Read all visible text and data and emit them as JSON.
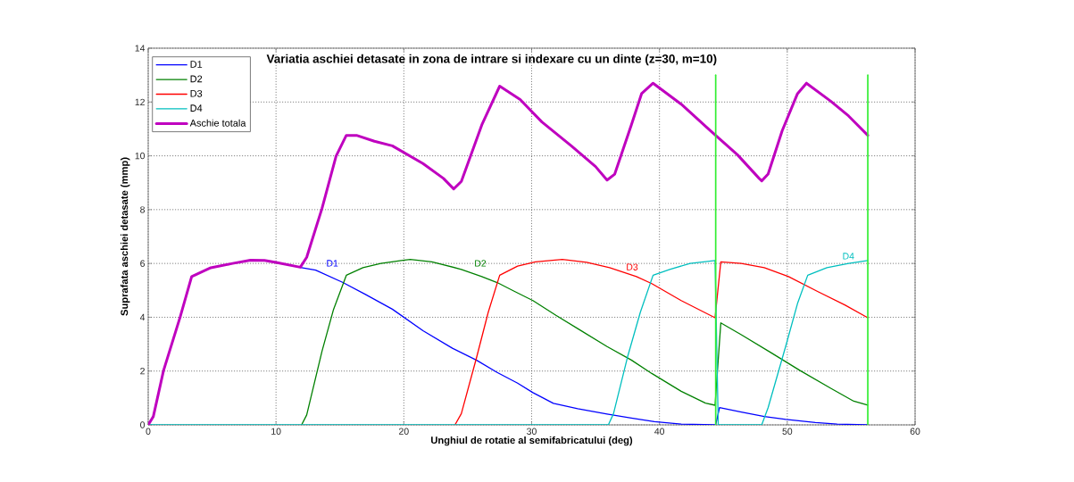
{
  "chart_data": {
    "type": "line",
    "title": "Variatia aschiei detasate in zona de intrare si indexare cu un dinte (z=30, m=10)",
    "xlabel": "Unghiul de rotatie al semifabricatului (deg)",
    "ylabel": "Suprafata aschiei detasate (mmp)",
    "xlim": [
      0,
      60
    ],
    "ylim": [
      0,
      14
    ],
    "xticks": [
      0,
      10,
      20,
      30,
      40,
      50,
      60
    ],
    "yticks": [
      0,
      2,
      4,
      6,
      8,
      10,
      12,
      14
    ],
    "grid": true,
    "legend": "top left",
    "series": [
      {
        "name": "D1",
        "color": "#0000ff",
        "x": [
          11.9,
          13.1,
          15.2,
          17.0,
          19.1,
          21.5,
          23.8,
          25.7,
          27.3,
          28.9,
          30.1,
          31.7,
          33.6,
          35.9,
          37.8,
          39.6,
          41.7,
          44.4,
          44.7,
          46.4,
          48.2,
          49.9,
          52.2,
          53.9,
          56.3
        ],
        "values": [
          5.85,
          5.75,
          5.3,
          4.85,
          4.3,
          3.5,
          2.85,
          2.4,
          1.95,
          1.55,
          1.2,
          0.8,
          0.6,
          0.4,
          0.25,
          0.12,
          0.03,
          0,
          0.64,
          0.48,
          0.31,
          0.2,
          0.09,
          0.03,
          0
        ]
      },
      {
        "name": "D2",
        "color": "#008000",
        "x": [
          12.0,
          12.4,
          13.6,
          14.5,
          15.5,
          16.8,
          18.2,
          19.8,
          20.5,
          22.2,
          24.5,
          26.1,
          27.3,
          28.7,
          30.1,
          31.9,
          33.8,
          35.9,
          37.8,
          39.4,
          41.7,
          43.6,
          44.35,
          44.8,
          46.4,
          48.7,
          51.0,
          53.4,
          55.2,
          56.3
        ],
        "values": [
          0,
          0.37,
          2.74,
          4.29,
          5.56,
          5.84,
          6.0,
          6.11,
          6.15,
          6.06,
          5.78,
          5.51,
          5.29,
          4.95,
          4.62,
          4.07,
          3.52,
          2.91,
          2.41,
          1.91,
          1.25,
          0.81,
          0.73,
          3.79,
          3.35,
          2.69,
          2.02,
          1.36,
          0.88,
          0.73
        ]
      },
      {
        "name": "D3",
        "color": "#ff0000",
        "x": [
          24.0,
          24.5,
          25.7,
          26.6,
          27.5,
          28.9,
          30.3,
          32.4,
          34.3,
          36.1,
          38.2,
          39.4,
          41.7,
          44.35,
          44.8,
          46.4,
          48.2,
          50.1,
          52.4,
          54.5,
          56.3
        ],
        "values": [
          0,
          0.42,
          2.52,
          4.18,
          5.56,
          5.9,
          6.06,
          6.15,
          6.04,
          5.84,
          5.51,
          5.25,
          4.62,
          3.98,
          6.06,
          6.0,
          5.84,
          5.51,
          4.95,
          4.46,
          3.98
        ]
      },
      {
        "name": "D4",
        "color": "#00bfbf",
        "x": [
          0,
          36.0,
          36.4,
          37.5,
          38.5,
          39.5,
          40.8,
          42.4,
          44.35,
          44.6,
          48.0,
          48.5,
          49.9,
          50.8,
          51.6,
          53.1,
          54.8,
          56.3
        ],
        "values": [
          0,
          0,
          0.41,
          2.52,
          4.18,
          5.56,
          5.78,
          6.0,
          6.11,
          0,
          0,
          0.64,
          2.96,
          4.51,
          5.56,
          5.84,
          6.0,
          6.11
        ]
      },
      {
        "name": "Aschie totala",
        "color": "#bf00bf",
        "x": [
          0,
          0.4,
          1.2,
          2.5,
          3.4,
          4.9,
          6.6,
          8.0,
          9.1,
          10.0,
          11.9,
          12.4,
          13.6,
          14.7,
          15.5,
          16.3,
          17.7,
          19.1,
          21.5,
          23.1,
          23.9,
          24.5,
          26.1,
          27.5,
          29.1,
          30.8,
          33.1,
          35.0,
          35.9,
          36.5,
          37.8,
          38.6,
          39.5,
          41.7,
          44.0,
          46.1,
          47.8,
          48.0,
          48.5,
          49.6,
          50.8,
          51.5,
          53.4,
          54.8,
          56.3
        ],
        "values": [
          0,
          0.31,
          2.02,
          4.01,
          5.51,
          5.84,
          6.0,
          6.12,
          6.11,
          6.04,
          5.86,
          6.23,
          8.05,
          9.99,
          10.76,
          10.76,
          10.54,
          10.37,
          9.71,
          9.16,
          8.77,
          9.05,
          11.15,
          12.59,
          12.09,
          11.26,
          10.37,
          9.6,
          9.1,
          9.32,
          11.15,
          12.31,
          12.7,
          11.92,
          10.93,
          10.04,
          9.16,
          9.07,
          9.32,
          10.93,
          12.31,
          12.7,
          12.03,
          11.48,
          10.76
        ]
      },
      {
        "color": "#33ee33",
        "x": [
          44.4,
          44.4
        ],
        "values": [
          0,
          13
        ]
      },
      {
        "color": "#33ee33",
        "x": [
          56.3,
          56.3
        ],
        "values": [
          0,
          13
        ]
      }
    ],
    "annotations": [
      "D1",
      "D2",
      "D3",
      "D4"
    ]
  }
}
